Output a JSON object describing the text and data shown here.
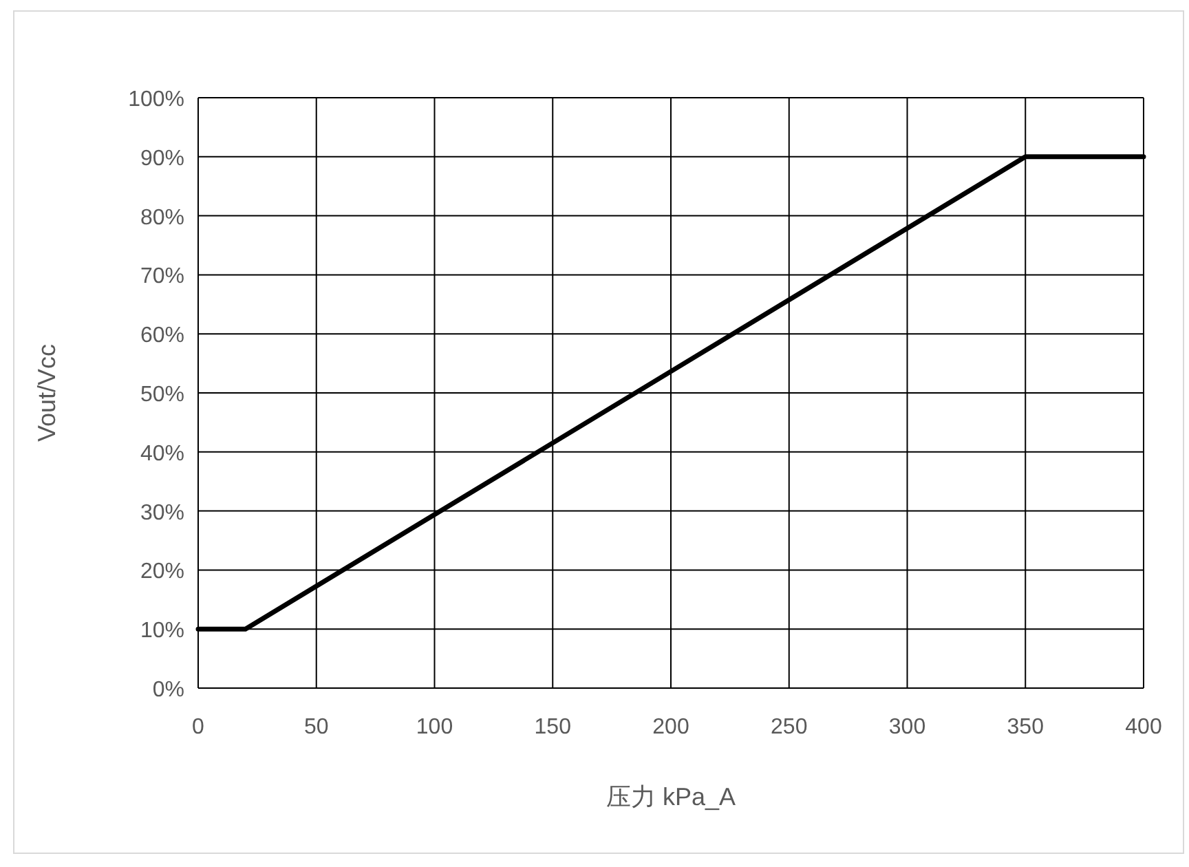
{
  "chart_data": {
    "type": "line",
    "xlabel": "压力 kPa_A",
    "ylabel": "Vout/Vcc",
    "x": [
      0,
      20,
      350,
      400
    ],
    "values": [
      10,
      10,
      90,
      90
    ],
    "color": "#000000",
    "xlim": [
      0,
      400
    ],
    "ylim": [
      0,
      100
    ],
    "xticks": [
      0,
      50,
      100,
      150,
      200,
      250,
      300,
      350,
      400
    ],
    "yticks": [
      {
        "value": 0,
        "label": "0%"
      },
      {
        "value": 10,
        "label": "10%"
      },
      {
        "value": 20,
        "label": "20%"
      },
      {
        "value": 30,
        "label": "30%"
      },
      {
        "value": 40,
        "label": "40%"
      },
      {
        "value": 50,
        "label": "50%"
      },
      {
        "value": 60,
        "label": "60%"
      },
      {
        "value": 70,
        "label": "70%"
      },
      {
        "value": 80,
        "label": "80%"
      },
      {
        "value": 90,
        "label": "90%"
      },
      {
        "value": 100,
        "label": "100%"
      }
    ],
    "grid": true
  }
}
